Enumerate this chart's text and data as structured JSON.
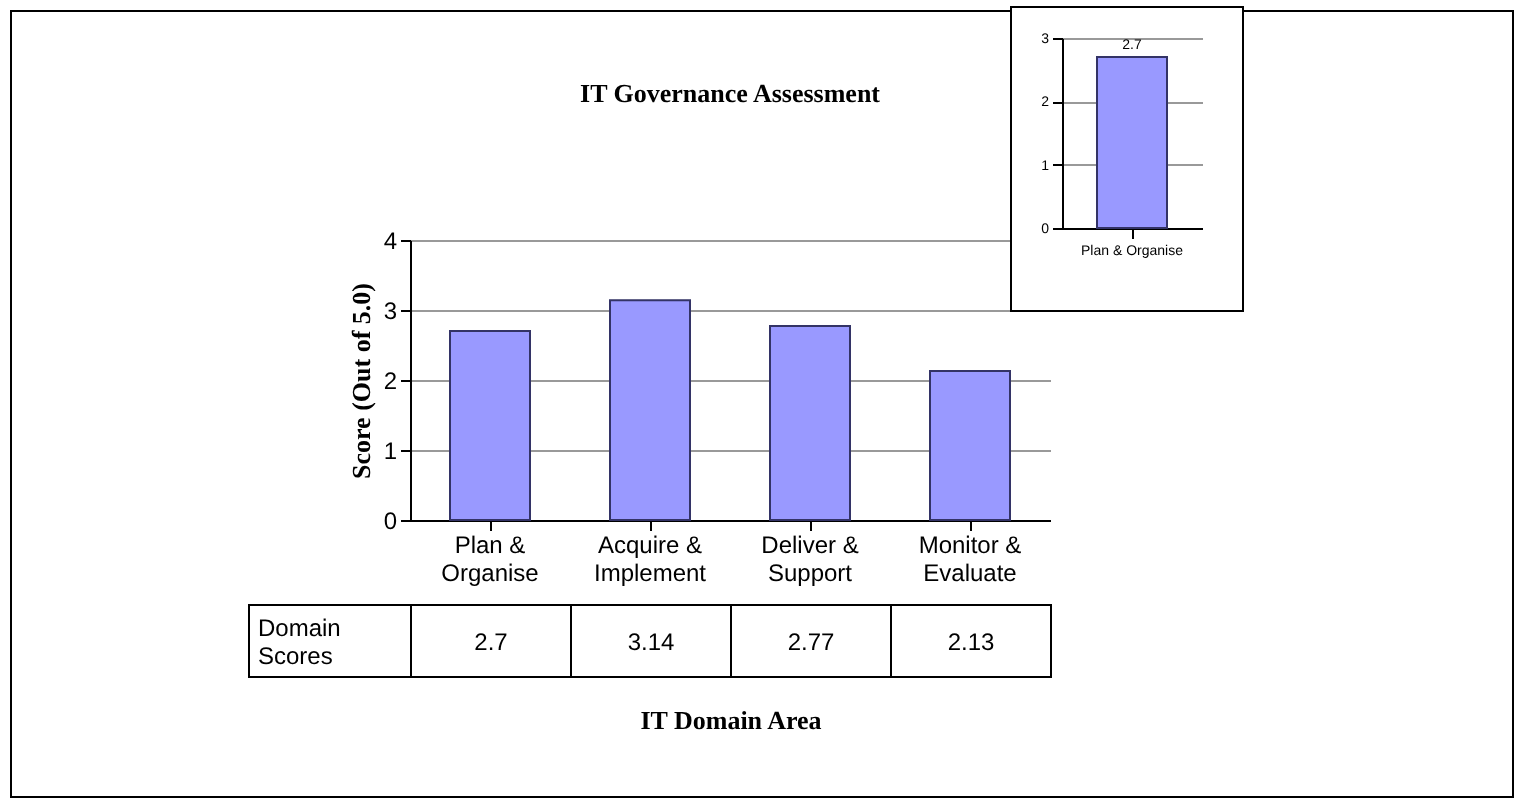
{
  "chart_data": [
    {
      "type": "bar",
      "title": "IT Governance Assessment",
      "xlabel": "IT Domain Area",
      "ylabel": "Score (Out of 5.0)",
      "categories": [
        "Plan & Organise",
        "Acquire & Implement",
        "Deliver & Support",
        "Monitor & Evaluate"
      ],
      "series": [
        {
          "name": "Domain Scores",
          "color": "#9999ff",
          "values": [
            2.7,
            3.14,
            2.77,
            2.13
          ]
        }
      ],
      "data_labels": true,
      "ylim": [
        0,
        4
      ],
      "yticks": [
        0,
        1,
        2,
        3,
        4
      ],
      "grid": "y",
      "legend": false
    },
    {
      "type": "bar",
      "categories": [
        "Plan & Organise"
      ],
      "series": [
        {
          "color": "#9999ff",
          "values": [
            2.7
          ]
        }
      ],
      "data_labels": true,
      "ylim": [
        0,
        3
      ],
      "yticks": [
        0,
        1,
        2,
        3
      ],
      "grid": "y",
      "legend": false
    }
  ]
}
